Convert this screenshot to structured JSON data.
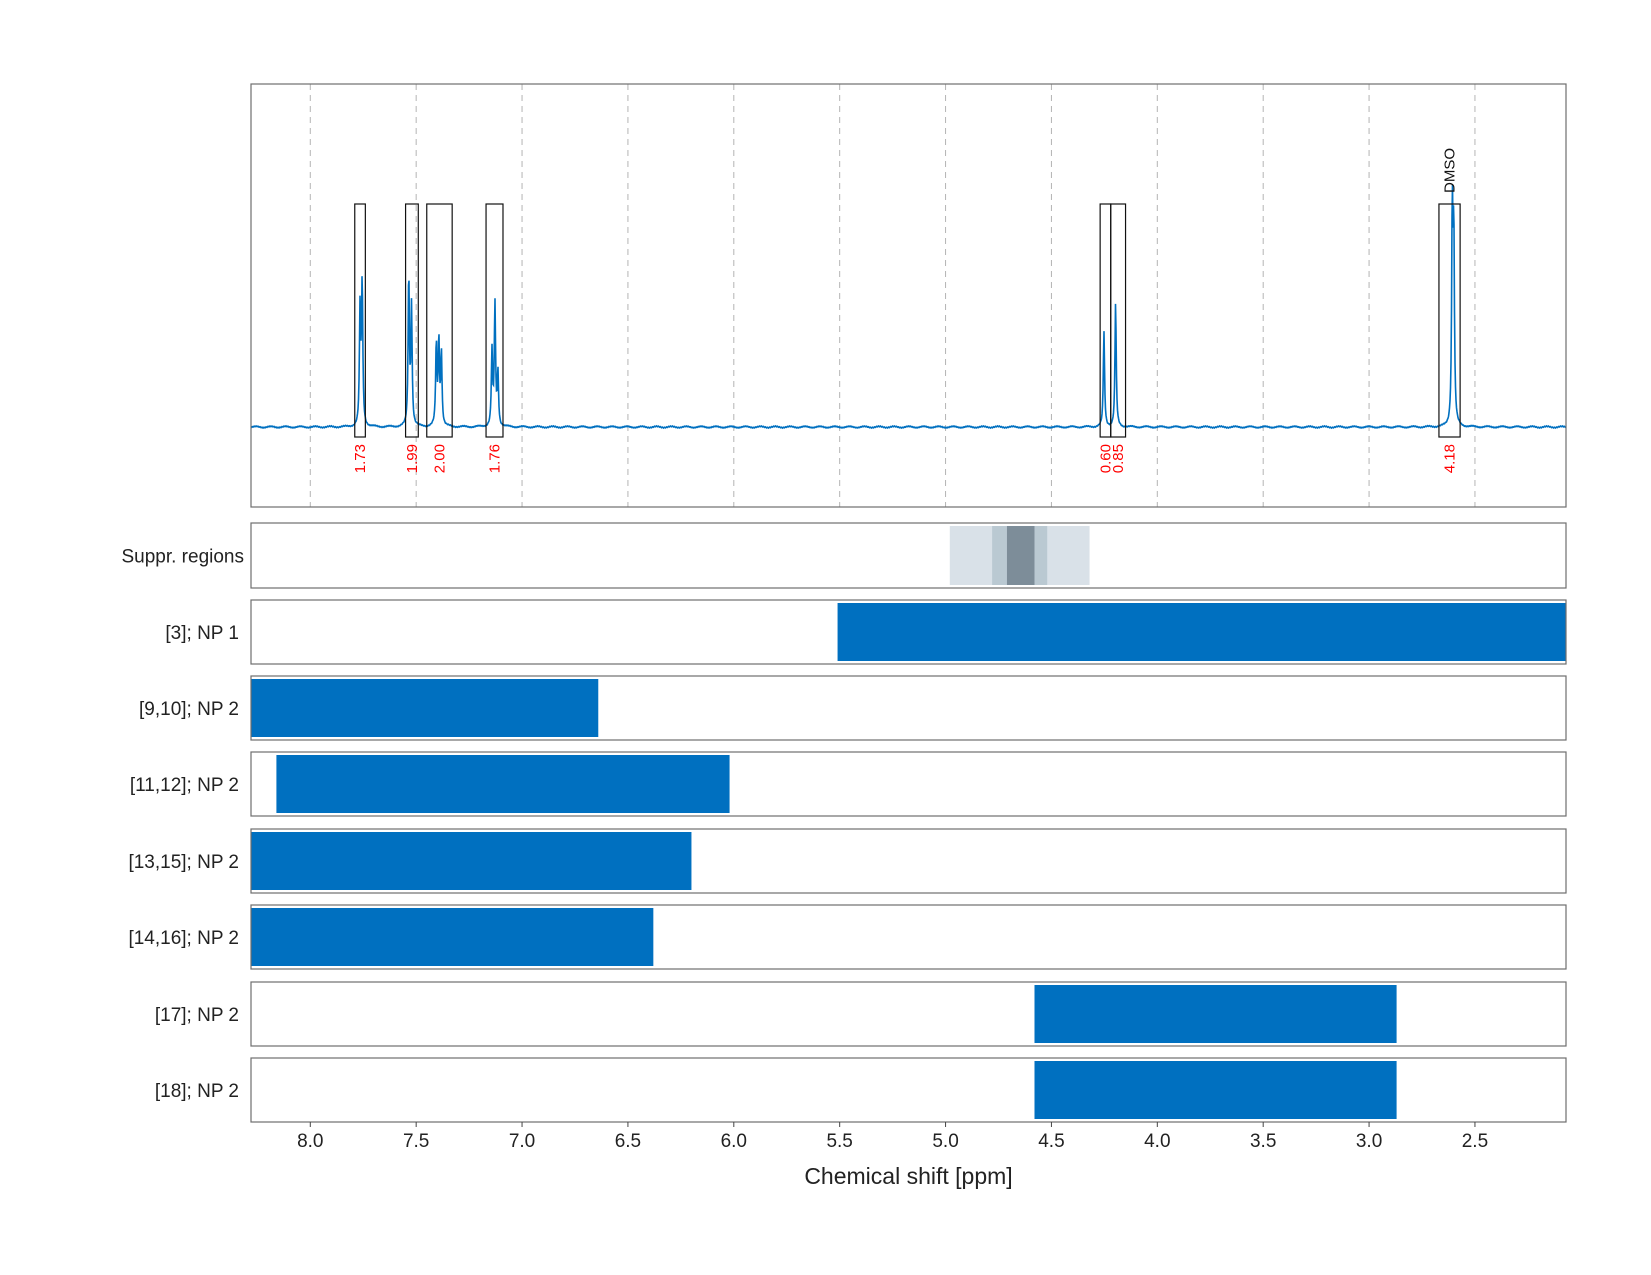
{
  "chart_data": {
    "type": "nmr-spectrum-with-bars",
    "xlabel": "Chemical shift [ppm]",
    "xlim": [
      8.28,
      2.07
    ],
    "xticks": [
      8.0,
      7.5,
      7.0,
      6.5,
      6.0,
      5.5,
      5.0,
      4.5,
      4.0,
      3.5,
      3.0,
      2.5
    ],
    "xtick_labels": [
      "8.0",
      "7.5",
      "7.0",
      "6.5",
      "6.0",
      "5.5",
      "5.0",
      "4.5",
      "4.0",
      "3.5",
      "3.0",
      "2.5"
    ],
    "grid": true,
    "line_color": "#0070c0",
    "integral_color": "#ff0000",
    "spectrum": {
      "peaks": [
        {
          "ppm": 7.765,
          "height": 0.44
        },
        {
          "ppm": 7.755,
          "height": 0.54
        },
        {
          "ppm": 7.535,
          "height": 0.57
        },
        {
          "ppm": 7.522,
          "height": 0.45
        },
        {
          "ppm": 7.405,
          "height": 0.31
        },
        {
          "ppm": 7.393,
          "height": 0.32
        },
        {
          "ppm": 7.381,
          "height": 0.28
        },
        {
          "ppm": 7.142,
          "height": 0.28
        },
        {
          "ppm": 7.128,
          "height": 0.46
        },
        {
          "ppm": 7.114,
          "height": 0.2
        },
        {
          "ppm": 4.252,
          "height": 0.36
        },
        {
          "ppm": 4.197,
          "height": 0.47
        },
        {
          "ppm": 2.607,
          "height": 0.8
        },
        {
          "ppm": 2.6,
          "height": 0.7
        }
      ]
    },
    "integral_regions": [
      {
        "from": 7.79,
        "to": 7.74,
        "value": "1.73"
      },
      {
        "from": 7.55,
        "to": 7.49,
        "value": "1.99"
      },
      {
        "from": 7.45,
        "to": 7.33,
        "value": "2.00"
      },
      {
        "from": 7.17,
        "to": 7.09,
        "value": "1.76"
      },
      {
        "from": 4.27,
        "to": 4.22,
        "value": "0.60"
      },
      {
        "from": 4.22,
        "to": 4.15,
        "value": "0.85"
      },
      {
        "from": 2.67,
        "to": 2.57,
        "value": "4.18",
        "label": "DMSO"
      }
    ],
    "suppression_regions": [
      {
        "from": 4.98,
        "to": 4.32,
        "color": "#d9e1e8"
      },
      {
        "from": 4.78,
        "to": 4.52,
        "color": "#bac9d2"
      },
      {
        "from": 4.71,
        "to": 4.58,
        "color": "#7d8d99"
      }
    ],
    "suppression_label": "Suppr. regions",
    "bar_color": "#0070c0",
    "rows": [
      {
        "label": "[3]; NP 1",
        "from": 5.51,
        "to": 2.07
      },
      {
        "label": "[9,10]; NP 2",
        "from": 8.28,
        "to": 6.64
      },
      {
        "label": "[11,12]; NP 2",
        "from": 8.16,
        "to": 6.02
      },
      {
        "label": "[13,15]; NP 2",
        "from": 8.28,
        "to": 6.2
      },
      {
        "label": "[14,16]; NP 2",
        "from": 8.28,
        "to": 6.38
      },
      {
        "label": "[17]; NP 2",
        "from": 4.58,
        "to": 2.87
      },
      {
        "label": "[18]; NP 2",
        "from": 4.58,
        "to": 2.87
      }
    ]
  }
}
